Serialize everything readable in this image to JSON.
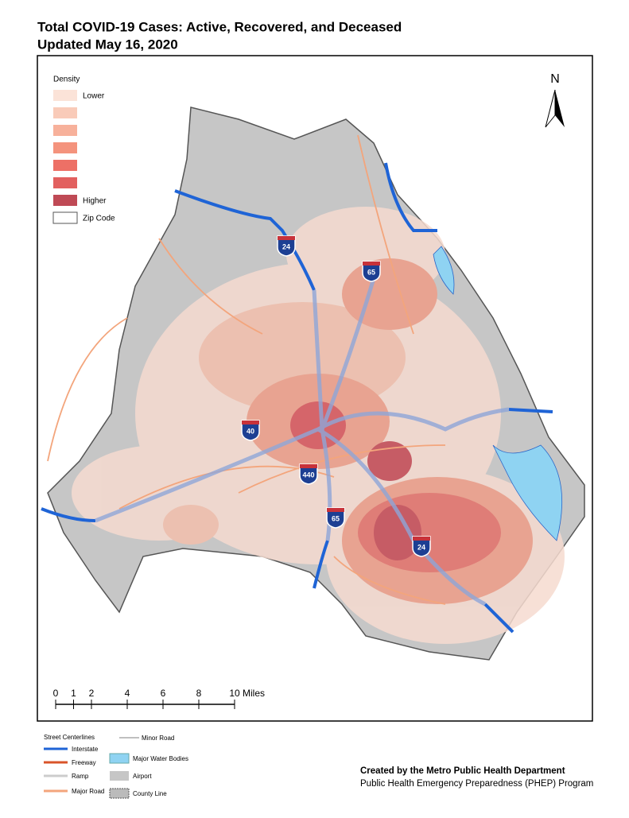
{
  "title": "Total COVID-19 Cases: Active, Recovered, and Deceased",
  "subtitle": "Updated May 16, 2020",
  "north_arrow": "N",
  "density_legend": {
    "title": "Density",
    "low_label": "Lower",
    "high_label": "Higher",
    "zip_label": "Zip Code",
    "colors": [
      "#fbe3d8",
      "#f9cbb9",
      "#f7b19b",
      "#f4937d",
      "#ed7066",
      "#e2605f",
      "#bf4a55"
    ]
  },
  "highway_shields": [
    "24",
    "65",
    "40",
    "440",
    "65",
    "24"
  ],
  "scale_bar": {
    "ticks": [
      0,
      1,
      2,
      4,
      6,
      8,
      10
    ],
    "unit": "Miles"
  },
  "street_legend": {
    "title": "Street Centerlines",
    "items": [
      "Interstate",
      "Freeway",
      "Ramp",
      "Major Road",
      "Minor Road",
      "Major Water Bodies",
      "Airport",
      "County Line"
    ]
  },
  "credit": {
    "line1": "Created by the Metro Public Health Department",
    "line2": "Public Health Emergency Preparedness (PHEP) Program"
  }
}
